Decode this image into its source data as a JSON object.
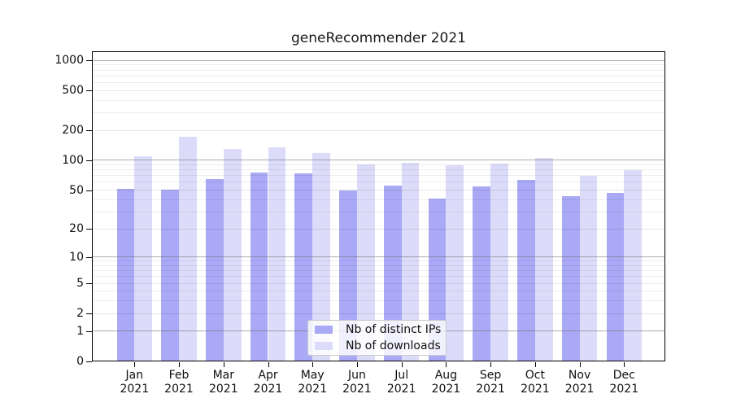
{
  "chart_data": {
    "type": "bar",
    "title": "geneRecommender 2021",
    "categories": [
      "Jan 2021",
      "Feb 2021",
      "Mar 2021",
      "Apr 2021",
      "May 2021",
      "Jun 2021",
      "Jul 2021",
      "Aug 2021",
      "Sep 2021",
      "Oct 2021",
      "Nov 2021",
      "Dec 2021"
    ],
    "series": [
      {
        "name": "Nb of distinct IPs",
        "color": "#a9a9f6",
        "values": [
          52,
          51,
          65,
          76,
          74,
          50,
          56,
          41,
          55,
          64,
          43,
          47
        ]
      },
      {
        "name": "Nb of downloads",
        "color": "#dcdcfa",
        "values": [
          110,
          172,
          129,
          136,
          118,
          91,
          95,
          89,
          93,
          106,
          70,
          79
        ]
      }
    ],
    "xlabel": "",
    "ylabel": "",
    "yscale": "log10(1+y)",
    "ylim": [
      0,
      1232
    ],
    "yticks": {
      "values": [
        0,
        1,
        2,
        5,
        10,
        20,
        50,
        100,
        200,
        500,
        1000
      ],
      "labels": [
        "0",
        "1",
        "2",
        "5",
        "10",
        "20",
        "50",
        "100",
        "200",
        "500",
        "1000"
      ]
    },
    "grid": true,
    "legend_position": "inside-bottom-center"
  },
  "colors": {
    "ip_bar": "#a9a9f6",
    "download_bar": "#dcdcfa",
    "grid_major": "#b3b3b3",
    "grid_minor": "#ececec",
    "axis": "#000000",
    "text": "#111111",
    "legend_border": "#c9c9c9",
    "background": "#ffffff"
  }
}
